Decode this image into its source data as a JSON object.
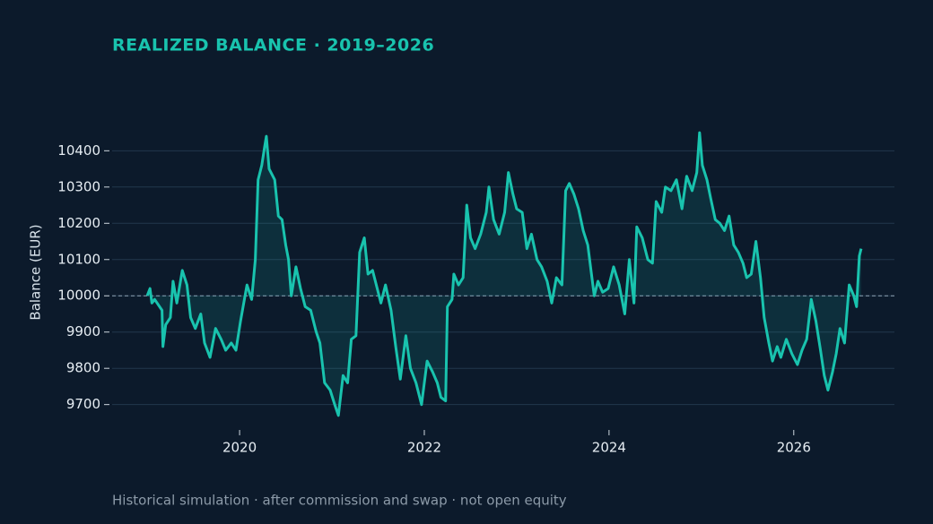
{
  "chart_data": {
    "type": "line",
    "title": "REALIZED BALANCE · 2019–2026",
    "y_label": "Balance (EUR)",
    "note": "Historical simulation · after commission and swap · not open equity",
    "color": "#19c3ae",
    "baseline": 10000,
    "grid": true,
    "xlim": [
      2018.62,
      2027.09
    ],
    "xticks": [
      2020,
      2022,
      2024,
      2026
    ],
    "ylim": [
      9630,
      10470
    ],
    "yticks": [
      9700,
      9800,
      9900,
      10000,
      10100,
      10200,
      10300,
      10400
    ],
    "x": [
      2019.0,
      2019.03,
      2019.05,
      2019.08,
      2019.16,
      2019.17,
      2019.2,
      2019.25,
      2019.28,
      2019.32,
      2019.38,
      2019.43,
      2019.47,
      2019.52,
      2019.58,
      2019.62,
      2019.68,
      2019.74,
      2019.8,
      2019.85,
      2019.91,
      2019.96,
      2020.01,
      2020.08,
      2020.13,
      2020.17,
      2020.2,
      2020.24,
      2020.27,
      2020.29,
      2020.32,
      2020.38,
      2020.42,
      2020.46,
      2020.5,
      2020.53,
      2020.56,
      2020.61,
      2020.66,
      2020.71,
      2020.77,
      2020.83,
      2020.87,
      2020.92,
      2020.98,
      2021.03,
      2021.07,
      2021.12,
      2021.17,
      2021.21,
      2021.26,
      2021.3,
      2021.35,
      2021.39,
      2021.44,
      2021.49,
      2021.53,
      2021.58,
      2021.64,
      2021.69,
      2021.74,
      2021.8,
      2021.85,
      2021.91,
      2021.97,
      2022.03,
      2022.09,
      2022.14,
      2022.18,
      2022.23,
      2022.25,
      2022.3,
      2022.32,
      2022.37,
      2022.42,
      2022.46,
      2022.5,
      2022.55,
      2022.61,
      2022.67,
      2022.7,
      2022.75,
      2022.81,
      2022.87,
      2022.91,
      2022.96,
      2023.0,
      2023.06,
      2023.11,
      2023.16,
      2023.22,
      2023.27,
      2023.33,
      2023.38,
      2023.43,
      2023.49,
      2023.53,
      2023.57,
      2023.62,
      2023.67,
      2023.72,
      2023.77,
      2023.81,
      2023.84,
      2023.88,
      2023.93,
      2023.99,
      2024.05,
      2024.11,
      2024.17,
      2024.22,
      2024.27,
      2024.3,
      2024.36,
      2024.42,
      2024.47,
      2024.51,
      2024.57,
      2024.61,
      2024.67,
      2024.73,
      2024.79,
      2024.84,
      2024.9,
      2024.95,
      2024.98,
      2025.01,
      2025.06,
      2025.1,
      2025.15,
      2025.2,
      2025.25,
      2025.3,
      2025.35,
      2025.4,
      2025.45,
      2025.49,
      2025.54,
      2025.59,
      2025.64,
      2025.68,
      2025.73,
      2025.77,
      2025.82,
      2025.86,
      2025.92,
      2025.98,
      2026.04,
      2026.09,
      2026.14,
      2026.19,
      2026.24,
      2026.29,
      2026.33,
      2026.37,
      2026.42,
      2026.46,
      2026.5,
      2026.55,
      2026.6,
      2026.65,
      2026.68,
      2026.71,
      2026.73
    ],
    "values": [
      10000,
      10020,
      9980,
      9990,
      9960,
      9860,
      9920,
      9940,
      10040,
      9980,
      10070,
      10030,
      9940,
      9910,
      9950,
      9870,
      9830,
      9910,
      9880,
      9850,
      9870,
      9850,
      9930,
      10030,
      9990,
      10100,
      10320,
      10360,
      10410,
      10440,
      10350,
      10320,
      10220,
      10210,
      10140,
      10100,
      10000,
      10080,
      10020,
      9970,
      9960,
      9900,
      9870,
      9760,
      9740,
      9700,
      9670,
      9780,
      9760,
      9880,
      9890,
      10120,
      10160,
      10060,
      10070,
      10020,
      9980,
      10030,
      9960,
      9860,
      9770,
      9890,
      9800,
      9760,
      9700,
      9820,
      9790,
      9760,
      9720,
      9710,
      9970,
      9990,
      10060,
      10030,
      10050,
      10250,
      10160,
      10130,
      10170,
      10230,
      10300,
      10210,
      10170,
      10230,
      10340,
      10280,
      10240,
      10230,
      10130,
      10170,
      10100,
      10080,
      10040,
      9980,
      10050,
      10030,
      10290,
      10310,
      10280,
      10240,
      10180,
      10140,
      10060,
      10000,
      10040,
      10010,
      10020,
      10080,
      10030,
      9950,
      10100,
      9980,
      10190,
      10160,
      10100,
      10090,
      10260,
      10230,
      10300,
      10290,
      10320,
      10240,
      10330,
      10290,
      10340,
      10450,
      10360,
      10320,
      10270,
      10210,
      10200,
      10180,
      10220,
      10140,
      10120,
      10090,
      10050,
      10060,
      10150,
      10050,
      9940,
      9870,
      9820,
      9860,
      9830,
      9880,
      9840,
      9810,
      9850,
      9880,
      9990,
      9930,
      9850,
      9780,
      9740,
      9790,
      9840,
      9910,
      9870,
      10030,
      10000,
      9970,
      10110,
      10130
    ]
  }
}
